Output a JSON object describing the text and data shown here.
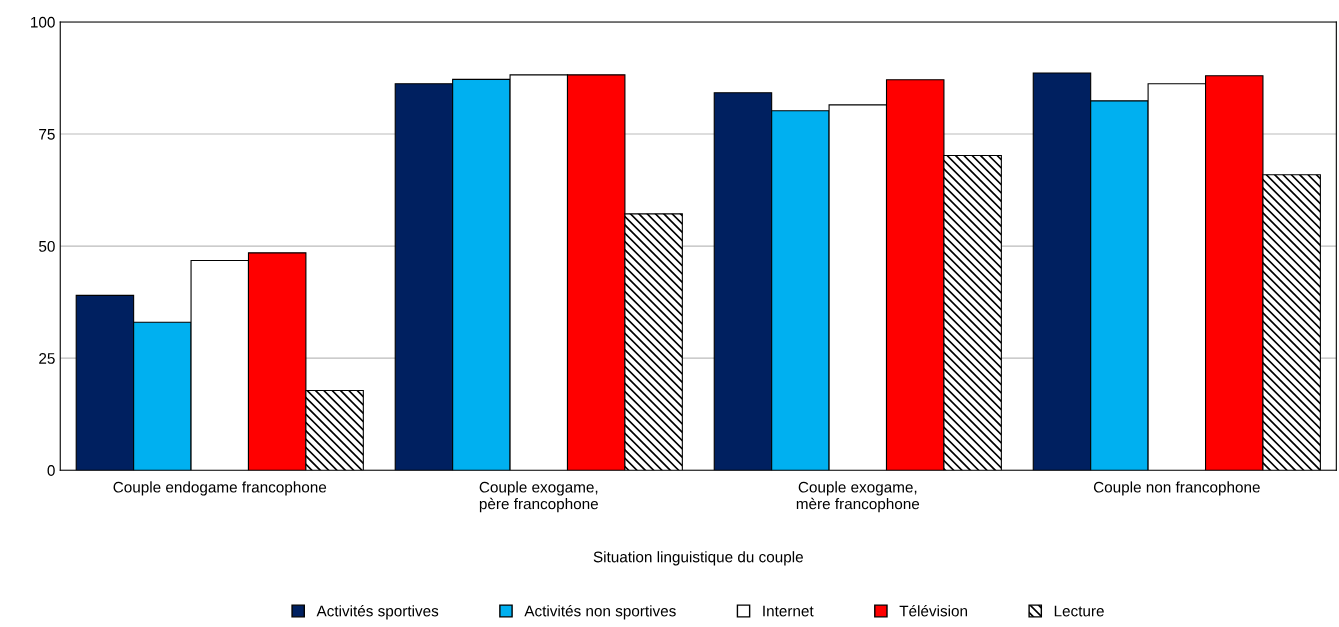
{
  "chart_data": {
    "type": "bar",
    "xlabel": "Situation linguistique du couple",
    "categories": [
      "Couple endogame francophone",
      "Couple exogame,\npère francophone",
      "Couple exogame,\nmère francophone",
      "Couple non francophone"
    ],
    "series": [
      {
        "name": "Activités sportives",
        "color": "#002060",
        "values": [
          39,
          86.2,
          84.2,
          88.6
        ]
      },
      {
        "name": "Activités non sportives",
        "color": "#00b0f0",
        "values": [
          33,
          87.2,
          80.2,
          82.4
        ]
      },
      {
        "name": "Internet",
        "color": "#ffffff",
        "values": [
          46.8,
          88.2,
          81.5,
          86.2
        ]
      },
      {
        "name": "Télévision",
        "color": "#ff0000",
        "values": [
          48.5,
          88.2,
          87.1,
          88.0
        ]
      },
      {
        "name": "Lecture",
        "color": "#000000",
        "values": [
          17.8,
          57.2,
          70.2,
          65.9
        ]
      }
    ],
    "ylim": [
      0,
      100
    ],
    "yticks": [
      0,
      25,
      50,
      75,
      100
    ],
    "grid": "y",
    "legend": "bottom"
  }
}
